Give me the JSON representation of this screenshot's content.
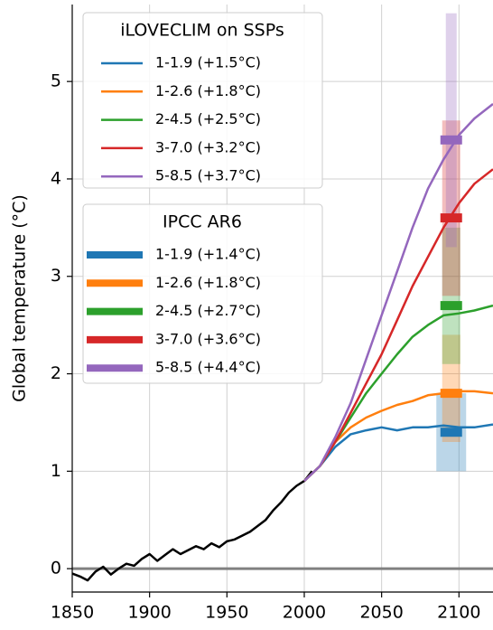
{
  "chart_data": {
    "type": "line",
    "y_label": "Global temperature (°C)",
    "xlim": [
      1850,
      2122
    ],
    "ylim": [
      -0.24,
      5.79
    ],
    "xticks": [
      1850,
      1900,
      1950,
      2000,
      2050,
      2100
    ],
    "yticks": [
      0,
      1,
      2,
      3,
      4,
      5
    ],
    "grid": true,
    "reference_line": 0,
    "observed": {
      "color": "#000000",
      "x": [
        1850,
        1855,
        1860,
        1865,
        1870,
        1875,
        1880,
        1885,
        1890,
        1895,
        1900,
        1905,
        1910,
        1915,
        1920,
        1925,
        1930,
        1935,
        1940,
        1945,
        1950,
        1955,
        1960,
        1965,
        1970,
        1975,
        1980,
        1985,
        1990,
        1995,
        2000,
        2005
      ],
      "values": [
        -0.05,
        -0.08,
        -0.12,
        -0.03,
        0.02,
        -0.06,
        0.0,
        0.05,
        0.03,
        0.1,
        0.15,
        0.08,
        0.14,
        0.2,
        0.15,
        0.19,
        0.23,
        0.2,
        0.26,
        0.22,
        0.28,
        0.3,
        0.34,
        0.38,
        0.44,
        0.5,
        0.6,
        0.68,
        0.78,
        0.85,
        0.9,
        1.0
      ]
    },
    "legend_title": "iLOVECLIM on SSPs",
    "x": [
      2000,
      2010,
      2020,
      2030,
      2040,
      2050,
      2060,
      2070,
      2080,
      2090,
      2100,
      2110,
      2122
    ],
    "series": [
      {
        "name": "1-1.9 (+1.5°C)",
        "color": "#1f77b4",
        "values": [
          0.9,
          1.05,
          1.25,
          1.38,
          1.42,
          1.45,
          1.42,
          1.45,
          1.45,
          1.47,
          1.45,
          1.45,
          1.48
        ]
      },
      {
        "name": "1-2.6 (+1.8°C)",
        "color": "#ff7f0e",
        "values": [
          0.9,
          1.05,
          1.3,
          1.45,
          1.55,
          1.62,
          1.68,
          1.72,
          1.78,
          1.8,
          1.82,
          1.82,
          1.8
        ]
      },
      {
        "name": "2-4.5 (+2.5°C)",
        "color": "#2ca02c",
        "values": [
          0.9,
          1.05,
          1.3,
          1.55,
          1.8,
          2.0,
          2.2,
          2.38,
          2.5,
          2.6,
          2.62,
          2.65,
          2.7
        ]
      },
      {
        "name": "3-7.0 (+3.2°C)",
        "color": "#d62728",
        "values": [
          0.9,
          1.05,
          1.3,
          1.6,
          1.9,
          2.2,
          2.55,
          2.9,
          3.2,
          3.5,
          3.75,
          3.95,
          4.1
        ]
      },
      {
        "name": "5-8.5 (+3.7°C)",
        "color": "#9467bd",
        "values": [
          0.9,
          1.05,
          1.35,
          1.7,
          2.15,
          2.6,
          3.05,
          3.5,
          3.9,
          4.2,
          4.45,
          4.62,
          4.77
        ]
      }
    ],
    "ipcc": {
      "title": "IPCC AR6",
      "x": 2095,
      "series": [
        {
          "name": "1-1.9 (+1.4°C)",
          "color": "#1f77b4",
          "value": 1.4,
          "low": 1.0,
          "high": 1.8
        },
        {
          "name": "1-2.6 (+1.8°C)",
          "color": "#ff7f0e",
          "value": 1.8,
          "low": 1.3,
          "high": 2.4
        },
        {
          "name": "2-4.5 (+2.7°C)",
          "color": "#2ca02c",
          "value": 2.7,
          "low": 2.1,
          "high": 3.5
        },
        {
          "name": "3-7.0 (+3.6°C)",
          "color": "#d62728",
          "value": 3.6,
          "low": 2.8,
          "high": 4.6
        },
        {
          "name": "5-8.5 (+4.4°C)",
          "color": "#9467bd",
          "value": 4.4,
          "low": 3.3,
          "high": 5.7
        }
      ]
    }
  }
}
